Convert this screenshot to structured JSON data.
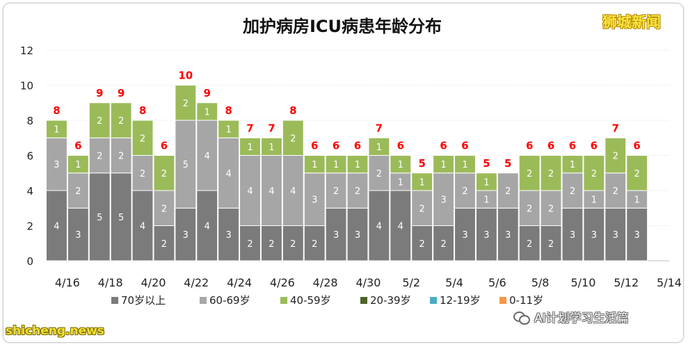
{
  "title": "加护病房ICU病患年龄分布",
  "brand": "狮城新闻",
  "watermarks": {
    "left": "shicheng.news",
    "right": "AI计划学习生活篇"
  },
  "colors": {
    "s70": "#7b7b7b",
    "s60": "#a6a6a6",
    "s40": "#9bbb59",
    "s20": "#4f6228",
    "s12": "#4bacc6",
    "s0": "#f79646",
    "total": "#ff0000"
  },
  "chart_data": {
    "type": "bar",
    "stacked": true,
    "title": "加护病房ICU病患年龄分布",
    "ylim": [
      0,
      12
    ],
    "yticks": [
      0,
      2,
      4,
      6,
      8,
      10,
      12
    ],
    "grid": true,
    "legend_position": "bottom",
    "categories": [
      "4/16",
      "4/17",
      "4/18",
      "4/19",
      "4/20",
      "4/21",
      "4/22",
      "4/23",
      "4/24",
      "4/25",
      "4/26",
      "4/27",
      "4/28",
      "4/29",
      "4/30",
      "5/1",
      "5/2",
      "5/3",
      "5/4",
      "5/5",
      "5/6",
      "5/7",
      "5/8",
      "5/9",
      "5/10",
      "5/11",
      "5/12",
      "5/13",
      "5/14"
    ],
    "tick_labels": [
      "4/16",
      "4/18",
      "4/20",
      "4/22",
      "4/24",
      "4/26",
      "4/28",
      "4/30",
      "5/2",
      "5/4",
      "5/6",
      "5/8",
      "5/10",
      "5/12",
      "5/14"
    ],
    "series": [
      {
        "name": "70岁以上",
        "color": "#7b7b7b",
        "values": [
          4,
          3,
          5,
          5,
          4,
          2,
          3,
          4,
          3,
          2,
          2,
          2,
          2,
          3,
          3,
          4,
          4,
          2,
          2,
          3,
          3,
          3,
          2,
          2,
          3,
          3,
          3,
          3,
          null
        ]
      },
      {
        "name": "60-69岁",
        "color": "#a6a6a6",
        "values": [
          3,
          2,
          2,
          2,
          2,
          2,
          5,
          4,
          4,
          4,
          4,
          4,
          3,
          2,
          2,
          2,
          1,
          2,
          3,
          2,
          1,
          2,
          2,
          2,
          2,
          1,
          2,
          1,
          null
        ]
      },
      {
        "name": "40-59岁",
        "color": "#9bbb59",
        "values": [
          1,
          1,
          2,
          2,
          2,
          2,
          2,
          1,
          1,
          1,
          1,
          2,
          1,
          1,
          1,
          1,
          1,
          1,
          1,
          1,
          1,
          0,
          2,
          2,
          1,
          2,
          2,
          2,
          null
        ]
      },
      {
        "name": "20-39岁",
        "color": "#4f6228",
        "values": [
          0,
          0,
          0,
          0,
          0,
          0,
          0,
          0,
          0,
          0,
          0,
          0,
          0,
          0,
          0,
          0,
          0,
          0,
          0,
          0,
          0,
          0,
          0,
          0,
          0,
          0,
          0,
          0,
          null
        ]
      },
      {
        "name": "12-19岁",
        "color": "#4bacc6",
        "values": [
          0,
          0,
          0,
          0,
          0,
          0,
          0,
          0,
          0,
          0,
          0,
          0,
          0,
          0,
          0,
          0,
          0,
          0,
          0,
          0,
          0,
          0,
          0,
          0,
          0,
          0,
          0,
          0,
          null
        ]
      },
      {
        "name": "0-11岁",
        "color": "#f79646",
        "values": [
          0,
          0,
          0,
          0,
          0,
          0,
          0,
          0,
          0,
          0,
          0,
          0,
          0,
          0,
          0,
          0,
          0,
          0,
          0,
          0,
          0,
          0,
          0,
          0,
          0,
          0,
          0,
          0,
          null
        ]
      }
    ],
    "totals": [
      8,
      6,
      9,
      9,
      8,
      6,
      10,
      9,
      8,
      7,
      7,
      8,
      6,
      6,
      6,
      7,
      6,
      5,
      6,
      6,
      5,
      5,
      6,
      6,
      6,
      6,
      7,
      6,
      null
    ]
  }
}
